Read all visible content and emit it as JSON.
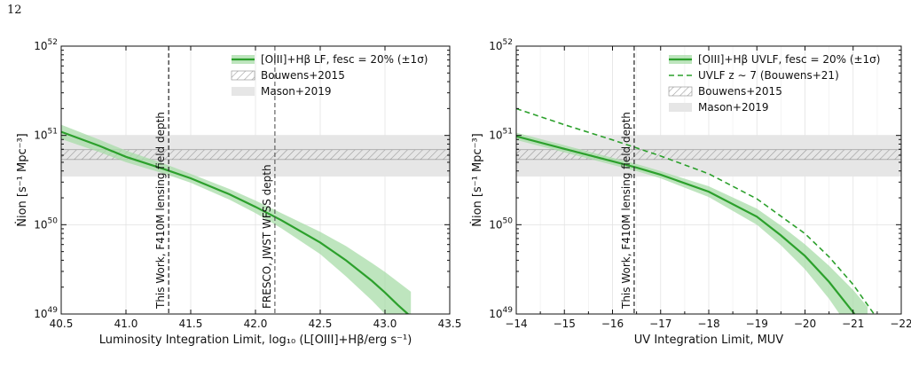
{
  "page_number": "12",
  "colors": {
    "green": "#2ca02c",
    "band": "#a8dca8",
    "mason": "#e6e6e6",
    "hatch": "#9a9a9a"
  },
  "chart_data": [
    {
      "type": "line",
      "xlabel": "Luminosity Integration Limit, log₁₀ (L[OIII]+Hβ/erg s⁻¹)",
      "ylabel": "Ṅion [s⁻¹ Mpc⁻³]",
      "xlim": [
        40.5,
        43.5
      ],
      "ylim_log10": [
        49,
        52
      ],
      "x_ticks": [
        "40.5",
        "41.0",
        "41.5",
        "42.0",
        "42.5",
        "43.0",
        "43.5"
      ],
      "y_ticks": [
        "10^49",
        "10^50",
        "10^51",
        "10^52"
      ],
      "grid": true,
      "legend_position": "top-right",
      "legend": [
        "[OIII]+Hβ LF, fesc = 20% (±1σ)",
        "Bouwens+2015",
        "Mason+2019"
      ],
      "series": [
        {
          "name": "[OIII]+Hβ LF, fesc = 20% (±1σ)",
          "style": "solid",
          "x": [
            40.5,
            40.8,
            41.0,
            41.3,
            41.5,
            41.8,
            42.0,
            42.2,
            42.5,
            42.7,
            42.9,
            43.0,
            43.1,
            43.2
          ],
          "log10_y": [
            51.04,
            50.88,
            50.76,
            50.62,
            50.52,
            50.34,
            50.2,
            50.05,
            49.8,
            49.6,
            49.37,
            49.24,
            49.1,
            48.97
          ],
          "band_log10_lo": [
            50.96,
            50.81,
            50.7,
            50.57,
            50.47,
            50.28,
            50.13,
            49.96,
            49.67,
            49.42,
            49.15,
            49.0,
            48.85,
            48.7
          ],
          "band_log10_hi": [
            51.12,
            50.95,
            50.83,
            50.68,
            50.57,
            50.4,
            50.27,
            50.13,
            49.92,
            49.76,
            49.57,
            49.47,
            49.36,
            49.25
          ]
        }
      ],
      "bands": [
        {
          "name": "Mason+2019",
          "log10_range": [
            50.54,
            51.0
          ],
          "style": "fill"
        },
        {
          "name": "Bouwens+2015",
          "log10_range": [
            50.73,
            50.84
          ],
          "style": "hatch"
        }
      ],
      "vlines": [
        {
          "x": 41.33,
          "label": "This Work, F410M lensing field depth"
        },
        {
          "x": 42.15,
          "label": "FRESCO, JWST WFSS depth"
        }
      ]
    },
    {
      "type": "line",
      "xlabel": "UV Integration Limit, MUV",
      "ylabel": "Ṅion [s⁻¹ Mpc⁻³]",
      "xlim": [
        -14,
        -22
      ],
      "ylim_log10": [
        49,
        52
      ],
      "x_ticks": [
        "−14",
        "−15",
        "−16",
        "−17",
        "−18",
        "−19",
        "−20",
        "−21",
        "−22"
      ],
      "y_ticks": [
        "10^49",
        "10^50",
        "10^51",
        "10^52"
      ],
      "grid": true,
      "legend_position": "top-right",
      "legend": [
        "[OIII]+Hβ UVLF, fesc = 20% (±1σ)",
        "UVLF z ∼ 7 (Bouwens+21)",
        "Bouwens+2015",
        "Mason+2019"
      ],
      "series": [
        {
          "name": "[OIII]+Hβ UVLF, fesc = 20% (±1σ)",
          "style": "solid",
          "x": [
            -14,
            -15,
            -16,
            -16.5,
            -17,
            -18,
            -19,
            -19.5,
            -20,
            -20.5,
            -21,
            -21.3
          ],
          "log10_y": [
            50.99,
            50.85,
            50.71,
            50.64,
            50.56,
            50.37,
            50.09,
            49.88,
            49.65,
            49.36,
            49.02,
            48.8
          ],
          "band_log10_lo": [
            50.95,
            50.81,
            50.67,
            50.6,
            50.52,
            50.31,
            50.0,
            49.77,
            49.5,
            49.17,
            48.78,
            48.5
          ],
          "band_log10_hi": [
            51.03,
            50.89,
            50.75,
            50.68,
            50.6,
            50.43,
            50.18,
            49.99,
            49.78,
            49.54,
            49.27,
            49.08
          ]
        },
        {
          "name": "UVLF z ∼ 7 (Bouwens+21)",
          "style": "dashed",
          "x": [
            -14,
            -15,
            -16,
            -16.5,
            -17,
            -18,
            -19,
            -20,
            -20.5,
            -21,
            -21.5,
            -21.7
          ],
          "log10_y": [
            51.3,
            51.12,
            50.95,
            50.86,
            50.77,
            50.57,
            50.29,
            49.9,
            49.64,
            49.33,
            48.95,
            48.8
          ]
        }
      ],
      "bands": [
        {
          "name": "Mason+2019",
          "log10_range": [
            50.54,
            51.0
          ],
          "style": "fill"
        },
        {
          "name": "Bouwens+2015",
          "log10_range": [
            50.73,
            50.84
          ],
          "style": "hatch"
        }
      ],
      "vlines": [
        {
          "x": -16.45,
          "label": "This Work, F410M lensing field depth"
        }
      ]
    }
  ]
}
